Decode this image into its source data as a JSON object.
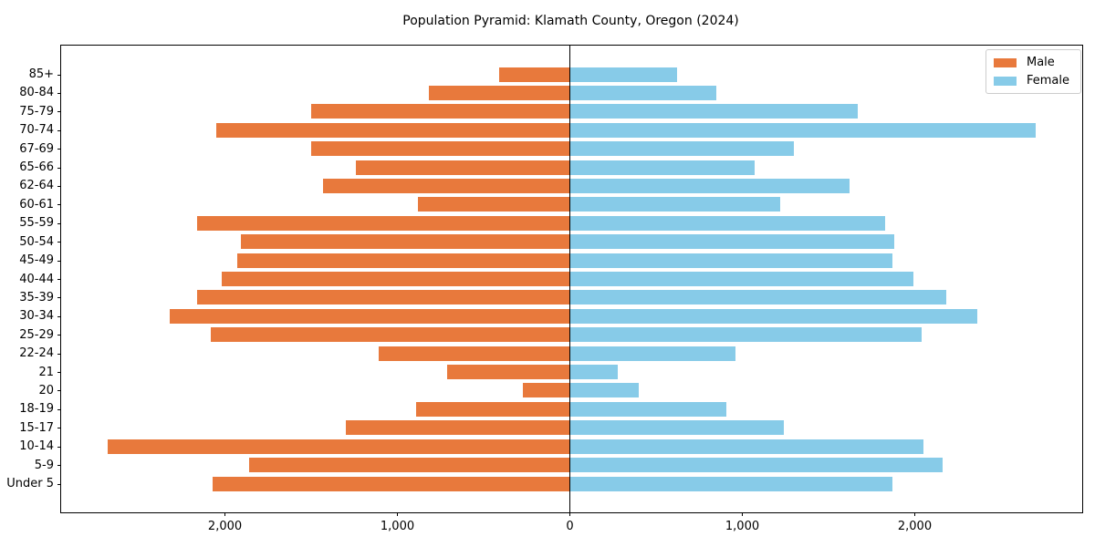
{
  "chart_data": {
    "type": "bar",
    "variant": "population-pyramid",
    "title": "Population Pyramid: Klamath County, Oregon (2024)",
    "categories": [
      "85+",
      "80-84",
      "75-79",
      "70-74",
      "67-69",
      "65-66",
      "62-64",
      "60-61",
      "55-59",
      "50-54",
      "45-49",
      "40-44",
      "35-39",
      "30-34",
      "25-29",
      "22-24",
      "21",
      "20",
      "18-19",
      "15-17",
      "10-14",
      "5-9",
      "Under 5"
    ],
    "series": [
      {
        "name": "Male",
        "side": "left",
        "color": "#e8793c",
        "values": [
          410,
          820,
          1500,
          2050,
          1500,
          1240,
          1430,
          880,
          2160,
          1910,
          1930,
          2020,
          2160,
          2320,
          2080,
          1110,
          710,
          270,
          890,
          1300,
          2680,
          1860,
          2070
        ]
      },
      {
        "name": "Female",
        "side": "right",
        "color": "#87cbe8",
        "values": [
          620,
          850,
          1670,
          2700,
          1300,
          1070,
          1620,
          1220,
          1830,
          1880,
          1870,
          1990,
          2180,
          2360,
          2040,
          960,
          280,
          400,
          910,
          1240,
          2050,
          2160,
          1870
        ]
      }
    ],
    "xlim": [
      -2950,
      2971
    ],
    "xticks": {
      "values": [
        -2000,
        -1000,
        0,
        1000,
        2000
      ],
      "labels": [
        "2,000",
        "1,000",
        "0",
        "1,000",
        "2,000"
      ]
    },
    "center_line_at": 0,
    "grid": false,
    "legend": {
      "position": "upper-right",
      "entries": [
        {
          "label": "Male",
          "color": "#e8793c"
        },
        {
          "label": "Female",
          "color": "#87cbe8"
        }
      ]
    }
  }
}
